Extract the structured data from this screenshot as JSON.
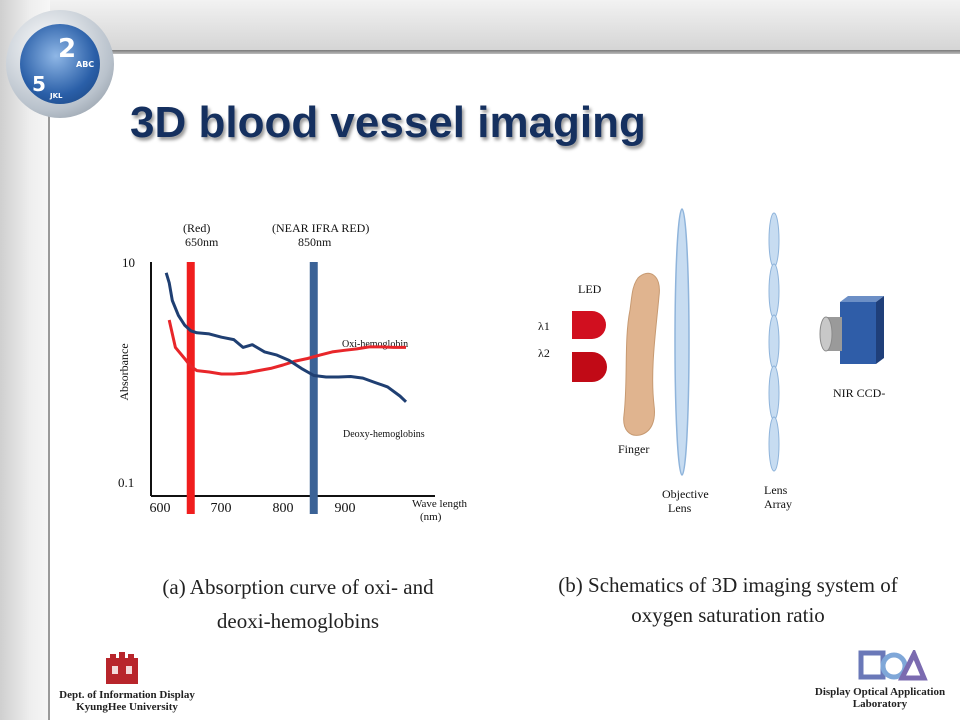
{
  "slide": {
    "title": "3D blood vessel imaging",
    "caption_a_line1": "(a) Absorption curve of oxi- and",
    "caption_a_line2": "deoxi-hemoglobins",
    "caption_b_line1": "(b) Schematics of 3D imaging system of",
    "caption_b_line2": "oxygen saturation ratio",
    "logo_keys": [
      "2",
      "ABC",
      "5",
      "JKL"
    ]
  },
  "footer": {
    "left_line1": "Dept. of Information Display",
    "left_line2": "KyungHee University",
    "right_line1": "Display Optical Application",
    "right_line2": "Laboratory"
  },
  "chart_data": {
    "type": "line",
    "xlabel": "Wave length (nm)",
    "ylabel": "Absorbance",
    "x_ticks": [
      "600",
      "700",
      "800",
      "900"
    ],
    "y_ticks": [
      "10",
      "0.1"
    ],
    "yscale": "log",
    "xlim": [
      590,
      1020
    ],
    "ylim": [
      0.1,
      10
    ],
    "series": [
      {
        "name": "Oxi-hemoglobin",
        "color": "#e8262a",
        "x": [
          615,
          625,
          640,
          650,
          660,
          680,
          700,
          720,
          740,
          760,
          780,
          800,
          820,
          840,
          860,
          880,
          900,
          920,
          940,
          960,
          980,
          1000
        ],
        "y": [
          3.0,
          1.7,
          1.35,
          1.15,
          1.05,
          1.02,
          0.98,
          0.98,
          1.0,
          1.05,
          1.1,
          1.18,
          1.28,
          1.35,
          1.45,
          1.55,
          1.6,
          1.65,
          1.72,
          1.72,
          1.7,
          1.7
        ]
      },
      {
        "name": "Deoxy-hemoglobins",
        "color": "#1f3f72",
        "x": [
          610,
          615,
          620,
          630,
          640,
          650,
          660,
          680,
          700,
          720,
          735,
          750,
          770,
          790,
          810,
          830,
          850,
          870,
          890,
          910,
          930,
          950,
          970,
          990,
          1000
        ],
        "y": [
          8.0,
          6.5,
          4.5,
          3.3,
          2.7,
          2.4,
          2.3,
          2.25,
          2.1,
          2.0,
          1.7,
          1.8,
          1.55,
          1.45,
          1.3,
          1.1,
          0.95,
          0.92,
          0.92,
          0.93,
          0.9,
          0.82,
          0.75,
          0.62,
          0.55
        ]
      }
    ],
    "annotations": [
      {
        "x": 650,
        "label": "(Red)",
        "sublabel": "650nm",
        "color": "#f01e1e"
      },
      {
        "x": 850,
        "label": "(NEAR IFRA RED)",
        "sublabel": "850nm",
        "color": "#3b6296"
      }
    ]
  },
  "schematic": {
    "led_label": "LED",
    "lambda1": "λ1",
    "lambda2": "λ2",
    "finger_label": "Finger",
    "objective_line1": "Objective",
    "objective_line2": "Lens",
    "array_line1": "Lens",
    "array_line2": "Array",
    "ccd_label": "NIR CCD-"
  }
}
